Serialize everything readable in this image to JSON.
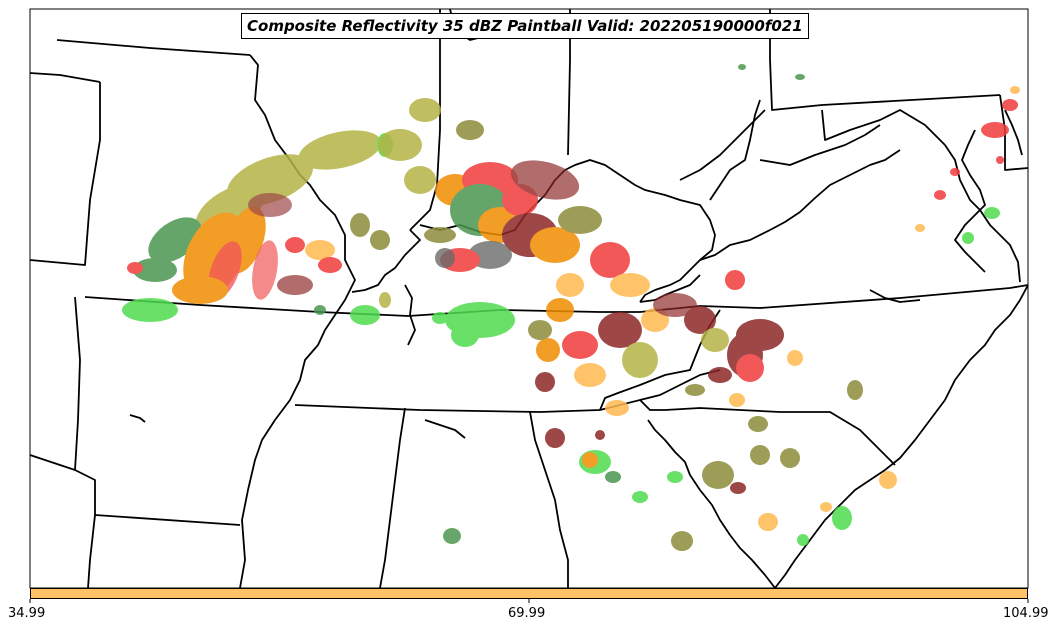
{
  "title": "Composite Reflectivity 35 dBZ Paintball Valid: 202205190000f021",
  "colorbar": {
    "color": "#ffc265",
    "ticks": [
      "34.99",
      "69.99",
      "104.99"
    ]
  },
  "colors": {
    "olive": "#b4b446",
    "green": "#50dc50",
    "dark_green": "#4b9650",
    "orange": "#f08c00",
    "light_orange": "#ffb950",
    "red": "#f03c3c",
    "dark_red": "#8c2828",
    "gray": "#505050",
    "brown_olive": "#8c8c3c"
  }
}
